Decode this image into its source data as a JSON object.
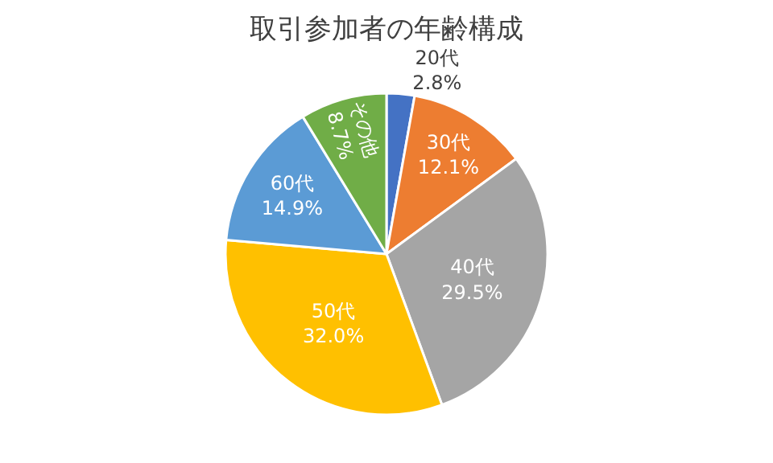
{
  "chart_data": {
    "type": "pie",
    "title": "取引参加者の年齢構成",
    "categories": [
      "20代",
      "30代",
      "40代",
      "50代",
      "60代",
      "その他"
    ],
    "values": [
      2.8,
      12.1,
      29.5,
      32.0,
      14.9,
      8.7
    ],
    "value_labels": [
      "2.8%",
      "12.1%",
      "29.5%",
      "32.0%",
      "14.9%",
      "8.7%"
    ],
    "colors": [
      "#4472c4",
      "#ed7d31",
      "#a5a5a5",
      "#ffc000",
      "#5b9bd5",
      "#70ad47"
    ],
    "legend": false
  }
}
